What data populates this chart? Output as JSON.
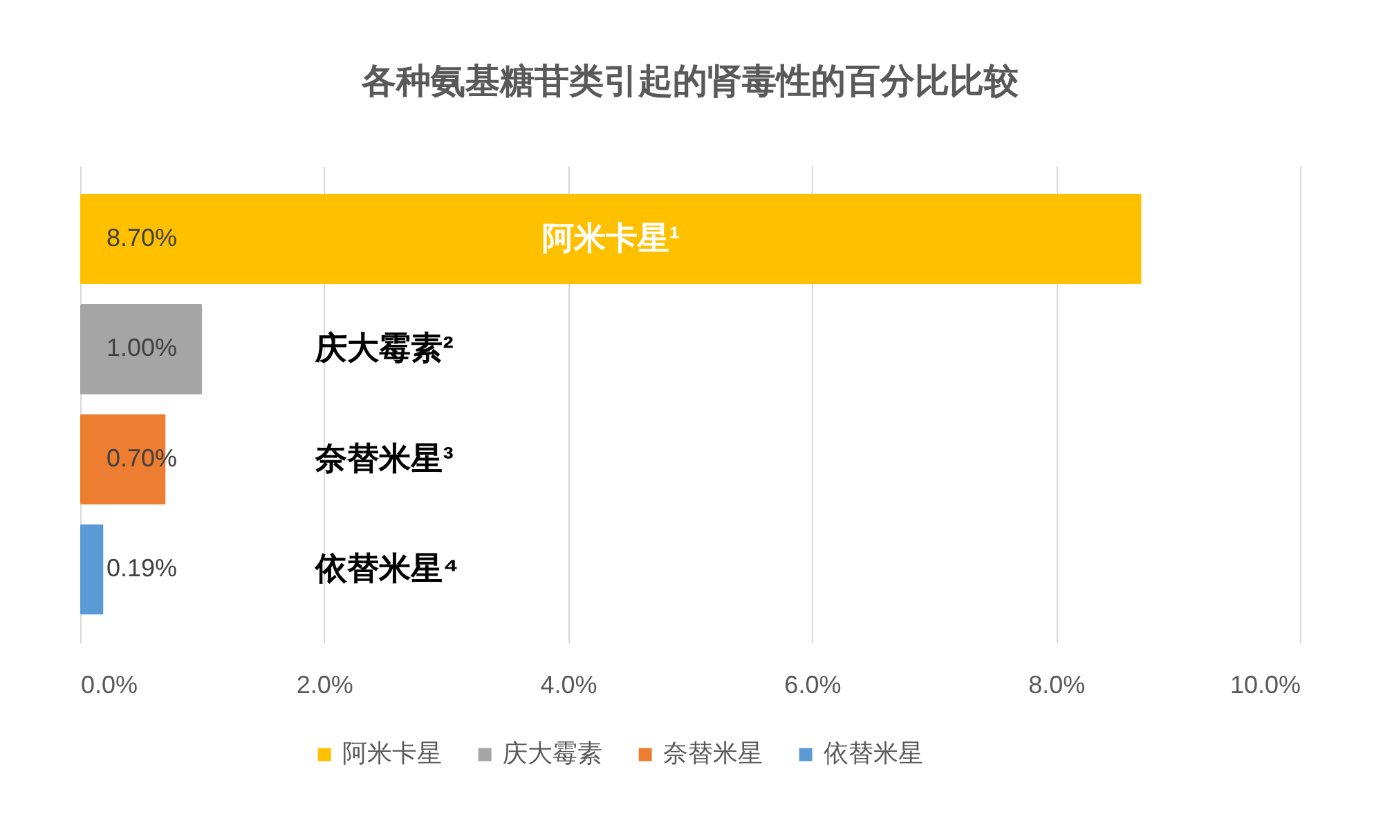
{
  "chart_data": {
    "type": "bar",
    "orientation": "horizontal",
    "title": "各种氨基糖苷类引起的肾毒性的百分比比较",
    "categories": [
      null
    ],
    "series": [
      {
        "name": "阿米卡星",
        "color": "#ffc000",
        "values": [
          8.7
        ],
        "value_labels": [
          "8.70%"
        ]
      },
      {
        "name": "庆大霉素",
        "color": "#a5a5a5",
        "values": [
          1.0
        ],
        "value_labels": [
          "1.00%"
        ]
      },
      {
        "name": "奈替米星",
        "color": "#ed7d31",
        "values": [
          0.7
        ],
        "value_labels": [
          "0.70%"
        ]
      },
      {
        "name": "依替米星",
        "color": "#5b9bd5",
        "values": [
          0.19
        ],
        "value_labels": [
          "0.19%"
        ]
      }
    ],
    "xlim": [
      0,
      10
    ],
    "xticks": [
      {
        "value": 0,
        "label": "0.0%"
      },
      {
        "value": 2,
        "label": "2.0%"
      },
      {
        "value": 4,
        "label": "4.0%"
      },
      {
        "value": 6,
        "label": "6.0%"
      },
      {
        "value": 8,
        "label": "8.0%"
      },
      {
        "value": 10,
        "label": "10.0%"
      }
    ],
    "grid": "x",
    "legend": "bottom",
    "tick_labels": "x",
    "annotations": [
      "阿米卡星¹",
      "庆大霉素²",
      "奈替米星³",
      "依替米星⁴"
    ]
  }
}
